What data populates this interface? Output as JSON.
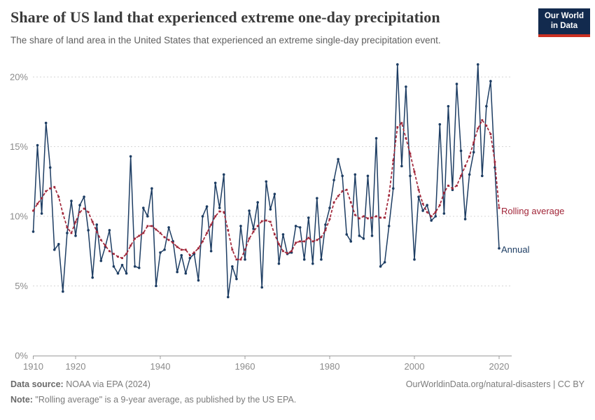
{
  "header": {
    "title": "Share of US land that experienced extreme one-day precipitation",
    "subtitle": "The share of land area in the United States that experienced an extreme single-day precipitation event.",
    "logo_line1": "Our World",
    "logo_line2": "in Data",
    "logo_bg_color": "#122a4e",
    "logo_bar_color": "#cb3022"
  },
  "chart_data": {
    "type": "line",
    "title": "Share of US land that experienced extreme one-day precipitation",
    "xlabel": "",
    "ylabel": "",
    "x_start": 1910,
    "x_end": 2020,
    "ylim": [
      0,
      20
    ],
    "grid": "horizontal-dashed",
    "legend_position": "right-of-line-labels",
    "ytick_values": [
      0,
      5,
      10,
      15,
      20
    ],
    "ytick_labels": [
      "0%",
      "5%",
      "10%",
      "15%",
      "20%"
    ],
    "xtick_values": [
      1910,
      1920,
      1940,
      1960,
      1980,
      2000,
      2020
    ],
    "xtick_labels": [
      "1910",
      "1920",
      "1940",
      "1960",
      "1980",
      "2000",
      "2020"
    ],
    "series": [
      {
        "name": "Annual",
        "color": "#1d3d63",
        "style": "solid-with-dot-markers",
        "values": [
          8.9,
          15.1,
          10.2,
          16.7,
          13.5,
          7.6,
          8.0,
          4.6,
          8.8,
          11.1,
          8.6,
          10.8,
          11.4,
          9.0,
          5.6,
          9.4,
          6.8,
          7.8,
          9.0,
          6.4,
          5.9,
          6.5,
          5.9,
          14.3,
          6.4,
          6.3,
          10.6,
          10.0,
          12.0,
          5.0,
          7.4,
          7.6,
          9.2,
          8.2,
          6.0,
          7.2,
          5.9,
          7.0,
          7.3,
          5.4,
          10.0,
          10.7,
          7.5,
          12.4,
          10.6,
          13.0,
          4.2,
          6.4,
          5.5,
          9.3,
          6.9,
          10.4,
          9.1,
          11.0,
          4.9,
          12.5,
          10.5,
          11.6,
          6.6,
          8.7,
          7.3,
          7.4,
          9.3,
          9.2,
          6.9,
          9.9,
          6.6,
          11.3,
          6.9,
          9.4,
          10.6,
          12.6,
          14.1,
          12.9,
          8.7,
          8.2,
          13.0,
          8.6,
          8.4,
          12.9,
          8.6,
          15.6,
          6.4,
          6.7,
          9.3,
          12.0,
          20.9,
          13.6,
          19.3,
          12.9,
          6.9,
          11.4,
          10.4,
          10.8,
          9.7,
          10.0,
          16.6,
          10.2,
          17.9,
          11.9,
          19.5,
          14.7,
          9.8,
          13.0,
          14.6,
          20.9,
          12.9,
          17.9,
          19.7,
          13.5,
          7.7
        ]
      },
      {
        "name": "Rolling average",
        "color": "#a12639",
        "style": "dashed-with-square-markers",
        "values": [
          10.4,
          10.9,
          11.3,
          11.8,
          12.0,
          12.1,
          11.4,
          10.2,
          9.2,
          8.8,
          9.6,
          10.3,
          10.55,
          10.3,
          9.6,
          8.9,
          8.3,
          7.9,
          7.5,
          7.3,
          7.1,
          7.0,
          7.3,
          7.9,
          8.4,
          8.6,
          8.8,
          9.3,
          9.3,
          9.05,
          8.8,
          8.5,
          8.3,
          8.1,
          7.8,
          7.6,
          7.6,
          7.2,
          7.4,
          7.7,
          8.2,
          8.8,
          9.4,
          10.0,
          10.35,
          10.3,
          9.0,
          7.6,
          6.9,
          6.9,
          7.6,
          8.4,
          8.9,
          9.3,
          9.65,
          9.7,
          9.6,
          8.7,
          8.0,
          7.5,
          7.35,
          7.5,
          8.1,
          8.2,
          8.2,
          8.45,
          8.2,
          8.3,
          8.5,
          9.0,
          9.8,
          11.0,
          11.45,
          11.8,
          11.9,
          11.0,
          10.1,
          9.85,
          10.0,
          9.85,
          9.9,
          10.0,
          9.9,
          9.9,
          11.5,
          14.0,
          16.4,
          16.7,
          15.6,
          14.5,
          13.2,
          11.9,
          10.9,
          10.3,
          10.0,
          10.3,
          10.8,
          11.7,
          12.2,
          12.0,
          12.2,
          12.9,
          13.6,
          14.3,
          15.3,
          16.3,
          16.9,
          16.5,
          15.9,
          13.9,
          10.6
        ]
      }
    ]
  },
  "footer": {
    "source_prefix": "Data source:",
    "source_text": " NOAA via EPA (2024)",
    "credit": "OurWorldinData.org/natural-disasters | CC BY",
    "note_prefix": "Note:",
    "note_text": " \"Rolling average\" is a 9-year average, as published by the US EPA."
  }
}
